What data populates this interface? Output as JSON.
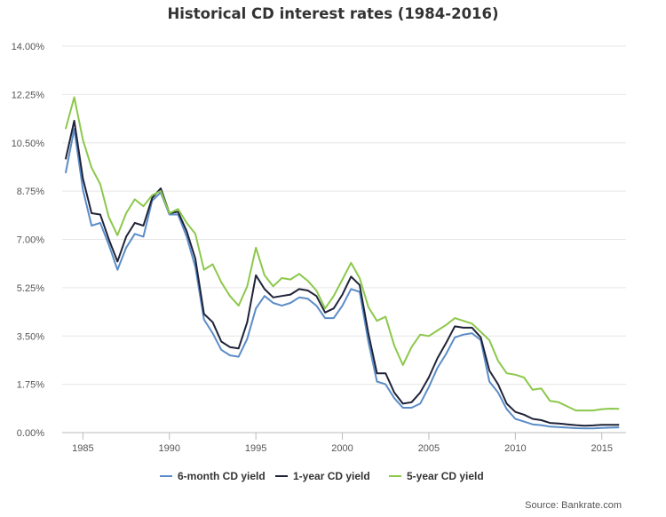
{
  "source_text": "Source: Bankrate.com",
  "chart_data": {
    "type": "line",
    "title": "Historical CD interest rates (1984-2016)",
    "xlabel": "",
    "ylabel": "",
    "xlim": [
      1983.8,
      2016.4
    ],
    "ylim": [
      0,
      14
    ],
    "y_ticks": [
      0,
      1.75,
      3.5,
      5.25,
      7,
      8.75,
      10.5,
      12.25,
      14
    ],
    "y_tick_labels": [
      "0.00%",
      "1.75%",
      "3.50%",
      "5.25%",
      "7.00%",
      "8.75%",
      "10.50%",
      "12.25%",
      "14.00%"
    ],
    "x_ticks": [
      1985,
      1990,
      1995,
      2000,
      2005,
      2010,
      2015
    ],
    "x_tick_labels": [
      "1985",
      "1990",
      "1995",
      "2000",
      "2005",
      "2010",
      "2015"
    ],
    "grid": "horizontal",
    "legend_position": "bottom",
    "x": [
      1984,
      1984.5,
      1985,
      1985.5,
      1986,
      1986.5,
      1987,
      1987.5,
      1988,
      1988.5,
      1989,
      1989.5,
      1990,
      1990.5,
      1991,
      1991.5,
      1992,
      1992.5,
      1993,
      1993.5,
      1994,
      1994.5,
      1995,
      1995.5,
      1996,
      1996.5,
      1997,
      1997.5,
      1998,
      1998.5,
      1999,
      1999.5,
      2000,
      2000.5,
      2001,
      2001.5,
      2002,
      2002.5,
      2003,
      2003.5,
      2004,
      2004.5,
      2005,
      2005.5,
      2006,
      2006.5,
      2007,
      2007.5,
      2008,
      2008.5,
      2009,
      2009.5,
      2010,
      2010.5,
      2011,
      2011.5,
      2012,
      2012.5,
      2013,
      2013.5,
      2014,
      2014.5,
      2015,
      2015.5,
      2016
    ],
    "series": [
      {
        "name": "6-month CD yield",
        "color": "#5b8cc7",
        "values": [
          9.4,
          11.0,
          8.8,
          7.5,
          7.6,
          6.8,
          5.9,
          6.7,
          7.2,
          7.1,
          8.4,
          8.7,
          7.9,
          7.9,
          7.1,
          6.0,
          4.1,
          3.6,
          3.0,
          2.8,
          2.75,
          3.4,
          4.5,
          4.95,
          4.7,
          4.6,
          4.7,
          4.9,
          4.85,
          4.6,
          4.15,
          4.15,
          4.6,
          5.2,
          5.1,
          3.3,
          1.85,
          1.75,
          1.25,
          0.9,
          0.9,
          1.05,
          1.65,
          2.35,
          2.85,
          3.45,
          3.55,
          3.6,
          3.35,
          1.85,
          1.45,
          0.85,
          0.5,
          0.4,
          0.3,
          0.27,
          0.22,
          0.2,
          0.18,
          0.16,
          0.15,
          0.15,
          0.17,
          0.18,
          0.19
        ]
      },
      {
        "name": "1-year CD yield",
        "color": "#1f2338",
        "values": [
          9.9,
          11.3,
          9.2,
          7.95,
          7.9,
          7.0,
          6.2,
          7.1,
          7.6,
          7.5,
          8.5,
          8.85,
          7.95,
          8.0,
          7.3,
          6.3,
          4.3,
          4.0,
          3.3,
          3.1,
          3.05,
          4.0,
          5.7,
          5.2,
          4.9,
          4.95,
          5.0,
          5.2,
          5.15,
          4.95,
          4.35,
          4.5,
          5.0,
          5.65,
          5.35,
          3.6,
          2.15,
          2.15,
          1.45,
          1.05,
          1.1,
          1.45,
          2.0,
          2.7,
          3.25,
          3.85,
          3.8,
          3.8,
          3.45,
          2.25,
          1.75,
          1.05,
          0.75,
          0.65,
          0.5,
          0.45,
          0.35,
          0.33,
          0.3,
          0.27,
          0.25,
          0.26,
          0.28,
          0.28,
          0.28
        ]
      },
      {
        "name": "5-year CD yield",
        "color": "#8cc84b",
        "values": [
          11.0,
          12.15,
          10.6,
          9.6,
          9.0,
          7.8,
          7.15,
          7.95,
          8.45,
          8.2,
          8.6,
          8.75,
          7.95,
          8.1,
          7.6,
          7.2,
          5.9,
          6.1,
          5.45,
          4.95,
          4.6,
          5.3,
          6.7,
          5.7,
          5.3,
          5.6,
          5.55,
          5.75,
          5.5,
          5.15,
          4.5,
          4.95,
          5.55,
          6.15,
          5.6,
          4.55,
          4.05,
          4.2,
          3.15,
          2.45,
          3.1,
          3.55,
          3.5,
          3.7,
          3.9,
          4.15,
          4.05,
          3.95,
          3.65,
          3.35,
          2.6,
          2.15,
          2.1,
          2.0,
          1.55,
          1.6,
          1.15,
          1.1,
          0.95,
          0.8,
          0.8,
          0.8,
          0.85,
          0.87,
          0.86
        ]
      }
    ]
  }
}
